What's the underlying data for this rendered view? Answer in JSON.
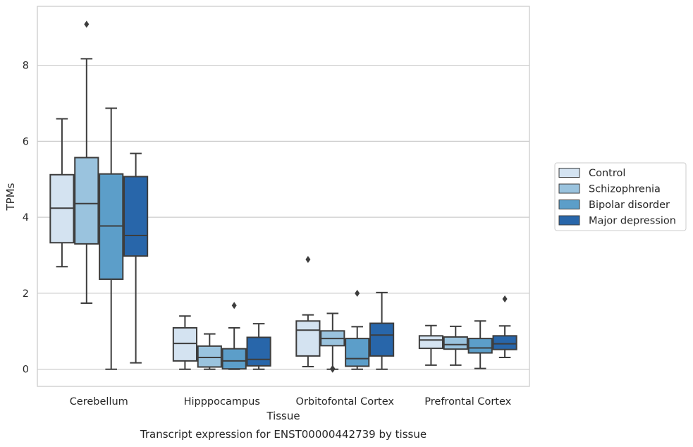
{
  "chart_data": {
    "type": "box",
    "title": "",
    "caption": "Transcript expression for ENST00000442739 by tissue",
    "xlabel": "Tissue",
    "ylabel": "TPMs",
    "ylim": [
      -0.45,
      9.55
    ],
    "yticks": [
      0,
      2,
      4,
      6,
      8
    ],
    "grid": true,
    "legend_position": "right",
    "categories": [
      "Cerebellum",
      "Hipppocampus",
      "Orbitofontal Cortex",
      "Prefrontal Cortex"
    ],
    "series": [
      {
        "name": "Control",
        "color": "#d4e3f1",
        "boxes": [
          {
            "whislo": 2.7,
            "q1": 3.33,
            "med": 4.24,
            "q3": 5.12,
            "whishi": 6.59,
            "fliers": []
          },
          {
            "whislo": 0.0,
            "q1": 0.22,
            "med": 0.68,
            "q3": 1.09,
            "whishi": 1.4,
            "fliers": []
          },
          {
            "whislo": 0.07,
            "q1": 0.35,
            "med": 1.03,
            "q3": 1.27,
            "whishi": 1.43,
            "fliers": [
              2.89
            ]
          },
          {
            "whislo": 0.11,
            "q1": 0.55,
            "med": 0.77,
            "q3": 0.88,
            "whishi": 1.15,
            "fliers": []
          }
        ]
      },
      {
        "name": "Schizophrenia",
        "color": "#9ac3de",
        "boxes": [
          {
            "whislo": 1.74,
            "q1": 3.3,
            "med": 4.36,
            "q3": 5.57,
            "whishi": 8.17,
            "fliers": [
              9.08
            ]
          },
          {
            "whislo": 0.0,
            "q1": 0.06,
            "med": 0.31,
            "q3": 0.61,
            "whishi": 0.93,
            "fliers": []
          },
          {
            "whislo": 0.0,
            "q1": 0.62,
            "med": 0.81,
            "q3": 1.01,
            "whishi": 1.47,
            "fliers": [
              0.0,
              0.02
            ]
          },
          {
            "whislo": 0.11,
            "q1": 0.53,
            "med": 0.65,
            "q3": 0.85,
            "whishi": 1.13,
            "fliers": []
          }
        ]
      },
      {
        "name": "Bipolar disorder",
        "color": "#5c9ec9",
        "boxes": [
          {
            "whislo": 0.0,
            "q1": 2.37,
            "med": 3.77,
            "q3": 5.14,
            "whishi": 6.87,
            "fliers": []
          },
          {
            "whislo": 0.0,
            "q1": 0.01,
            "med": 0.22,
            "q3": 0.54,
            "whishi": 1.09,
            "fliers": [
              1.68
            ]
          },
          {
            "whislo": 0.0,
            "q1": 0.08,
            "med": 0.28,
            "q3": 0.81,
            "whishi": 1.12,
            "fliers": [
              2.0
            ]
          },
          {
            "whislo": 0.02,
            "q1": 0.43,
            "med": 0.56,
            "q3": 0.81,
            "whishi": 1.27,
            "fliers": []
          }
        ]
      },
      {
        "name": "Major depression",
        "color": "#2866aa",
        "boxes": [
          {
            "whislo": 0.17,
            "q1": 2.98,
            "med": 3.52,
            "q3": 5.07,
            "whishi": 5.68,
            "fliers": []
          },
          {
            "whislo": 0.0,
            "q1": 0.09,
            "med": 0.26,
            "q3": 0.84,
            "whishi": 1.2,
            "fliers": []
          },
          {
            "whislo": 0.0,
            "q1": 0.35,
            "med": 0.9,
            "q3": 1.21,
            "whishi": 2.02,
            "fliers": []
          },
          {
            "whislo": 0.31,
            "q1": 0.52,
            "med": 0.67,
            "q3": 0.88,
            "whishi": 1.14,
            "fliers": [
              1.85
            ]
          }
        ]
      }
    ]
  }
}
